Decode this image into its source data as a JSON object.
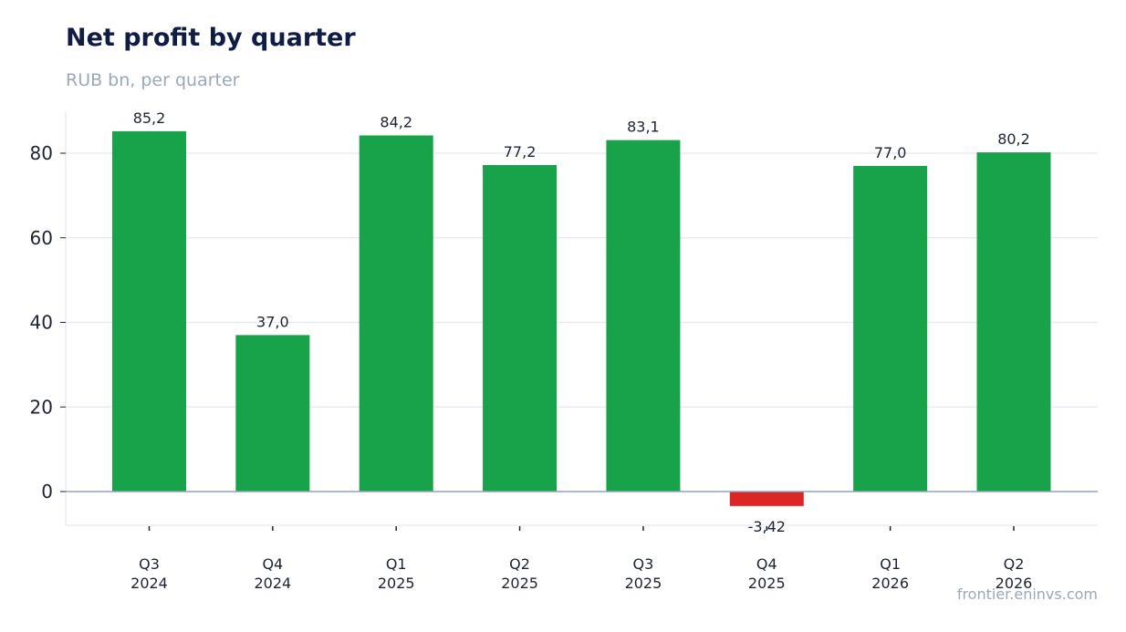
{
  "chart_data": {
    "type": "bar",
    "title": "Net profit by quarter",
    "subtitle": "RUB bn, per quarter",
    "source": "frontier.eninvs.com",
    "categories": [
      [
        "Q3",
        "2024"
      ],
      [
        "Q4",
        "2024"
      ],
      [
        "Q1",
        "2025"
      ],
      [
        "Q2",
        "2025"
      ],
      [
        "Q3",
        "2025"
      ],
      [
        "Q4",
        "2025"
      ],
      [
        "Q1",
        "2026"
      ],
      [
        "Q2",
        "2026"
      ]
    ],
    "values": [
      85.2,
      37.0,
      84.2,
      77.2,
      83.1,
      -3.42,
      77.0,
      80.2
    ],
    "value_labels": [
      "85,2",
      "37,0",
      "84,2",
      "77,2",
      "83,1",
      "-3,42",
      "77,0",
      "80,2"
    ],
    "yticks": [
      0,
      20,
      40,
      60,
      80
    ],
    "ylim": [
      -8,
      89.5
    ],
    "grid": true,
    "colors": {
      "positive": "#18a34a",
      "negative": "#dc2626",
      "grid": "#e2e8f0",
      "zero_line": "#94a3b8"
    }
  }
}
